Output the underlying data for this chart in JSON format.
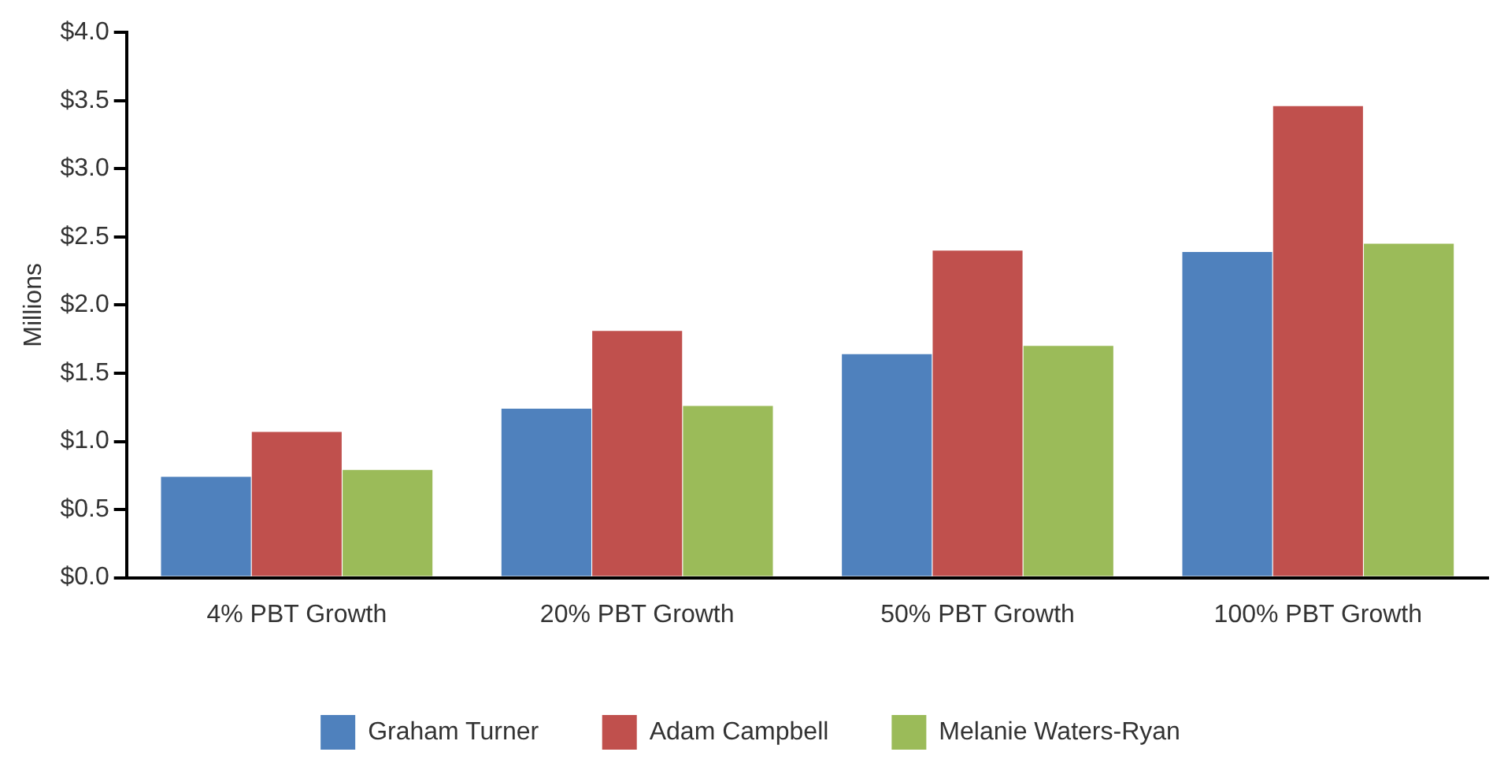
{
  "chart_data": {
    "type": "bar",
    "ylabel": "Millions",
    "categories": [
      "4% PBT Growth",
      "20% PBT Growth",
      "50% PBT Growth",
      "100% PBT Growth"
    ],
    "series": [
      {
        "name": "Graham Turner",
        "color": "#4f81bd",
        "values": [
          0.74,
          1.24,
          1.64,
          2.39
        ]
      },
      {
        "name": "Adam Campbell",
        "color": "#c0504d",
        "values": [
          1.07,
          1.81,
          2.4,
          3.46
        ]
      },
      {
        "name": "Melanie Waters-Ryan",
        "color": "#9bbb59",
        "values": [
          0.79,
          1.26,
          1.7,
          2.45
        ]
      }
    ],
    "ylim": [
      0,
      4
    ],
    "yticks": [
      {
        "value": 0,
        "label": "$0.0"
      },
      {
        "value": 0.5,
        "label": "$0.5"
      },
      {
        "value": 1,
        "label": "$1.0"
      },
      {
        "value": 1.5,
        "label": "$1.5"
      },
      {
        "value": 2,
        "label": "$2.0"
      },
      {
        "value": 2.5,
        "label": "$2.5"
      },
      {
        "value": 3,
        "label": "$3.0"
      },
      {
        "value": 3.5,
        "label": "$3.5"
      },
      {
        "value": 4,
        "label": "$4.0"
      }
    ],
    "grid": false,
    "legend": "bottom"
  }
}
